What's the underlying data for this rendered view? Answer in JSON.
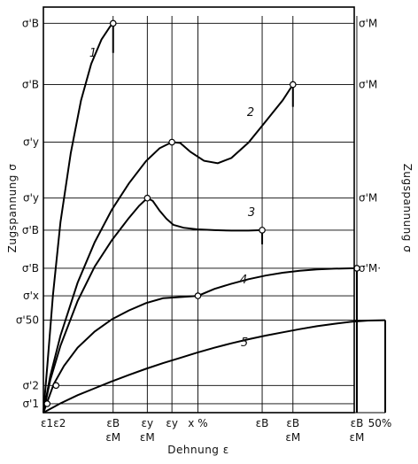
{
  "chart_data": {
    "type": "line",
    "title": "",
    "xlabel": "Dehnung ε",
    "ylabel_left": "Zugspannung σ",
    "ylabel_right": "Zugspannung σ",
    "xlim": [
      0,
      1000
    ],
    "ylim": [
      0,
      1000
    ],
    "grid": "custom reference lines",
    "y_ticks_left": [
      {
        "label": "σ'B",
        "value": 960
      },
      {
        "label": "σ'B",
        "value": 809
      },
      {
        "label": "σ'y",
        "value": 667
      },
      {
        "label": "σ'y",
        "value": 529
      },
      {
        "label": "σ'B",
        "value": 450
      },
      {
        "label": "σ'B",
        "value": 356
      },
      {
        "label": "σ'x",
        "value": 288
      },
      {
        "label": "σ'50",
        "value": 228
      },
      {
        "label": "σ'2",
        "value": 67
      },
      {
        "label": "σ'1",
        "value": 22
      }
    ],
    "y_ticks_right": [
      {
        "label": "σ'M",
        "value": 960
      },
      {
        "label": "σ'M",
        "value": 809
      },
      {
        "label": "σ'M",
        "value": 529
      },
      {
        "label": "σ'M·",
        "value": 356
      }
    ],
    "x_ticks": [
      {
        "label": "ε1",
        "value": 0
      },
      {
        "label": "ε2",
        "value": 37
      },
      {
        "label": "εB εM",
        "value": 204
      },
      {
        "label": "εy εM",
        "value": 304
      },
      {
        "label": "εy",
        "value": 376
      },
      {
        "label": "x %",
        "value": 452
      },
      {
        "label": "εB",
        "value": 640
      },
      {
        "label": "εB εM",
        "value": 730
      },
      {
        "label": "εB εM",
        "value": 917
      },
      {
        "label": "50%",
        "value": 1000
      }
    ],
    "series": [
      {
        "name": "1",
        "x": [
          0,
          12,
          28,
          50,
          80,
          110,
          140,
          170,
          195,
          204
        ],
        "y": [
          0,
          120,
          290,
          470,
          640,
          770,
          860,
          920,
          952,
          960
        ],
        "end": {
          "x": 204,
          "y": 960
        },
        "fracture_to": 887
      },
      {
        "name": "2",
        "x": [
          0,
          20,
          50,
          100,
          150,
          200,
          250,
          300,
          340,
          376,
          400,
          430,
          470,
          510,
          550,
          600,
          650,
          700,
          730
        ],
        "y": [
          0,
          90,
          190,
          320,
          420,
          500,
          565,
          620,
          652,
          667,
          665,
          643,
          621,
          615,
          628,
          666,
          718,
          770,
          809
        ],
        "end": {
          "x": 730,
          "y": 809
        },
        "fracture_to": 754
      },
      {
        "name": "3",
        "x": [
          0,
          20,
          50,
          100,
          150,
          200,
          250,
          280,
          304,
          320,
          340,
          360,
          380,
          410,
          450,
          500,
          550,
          600,
          640
        ],
        "y": [
          0,
          80,
          165,
          275,
          360,
          425,
          480,
          510,
          529,
          522,
          498,
          478,
          463,
          456,
          452,
          450,
          449,
          449,
          450
        ],
        "end": {
          "x": 640,
          "y": 450
        },
        "fracture_to": 415
      },
      {
        "name": "4",
        "x": [
          0,
          30,
          60,
          100,
          150,
          200,
          250,
          300,
          350,
          400,
          452,
          500,
          550,
          600,
          650,
          700,
          750,
          800,
          850,
          900,
          917
        ],
        "y": [
          0,
          70,
          115,
          160,
          200,
          230,
          252,
          270,
          282,
          285,
          288,
          305,
          318,
          329,
          338,
          345,
          350,
          353,
          355,
          356,
          356
        ],
        "end": {
          "x": 917,
          "y": 356
        },
        "fracture_to": 0
      },
      {
        "name": "5",
        "x": [
          0,
          50,
          100,
          150,
          200,
          250,
          300,
          350,
          400,
          450,
          500,
          550,
          600,
          650,
          700,
          750,
          800,
          850,
          900,
          950,
          1000
        ],
        "y": [
          0,
          23,
          43,
          60,
          77,
          93,
          108,
          122,
          135,
          148,
          160,
          171,
          181,
          190,
          198,
          206,
          213,
          219,
          224,
          227,
          228
        ],
        "end": {
          "x": 1000,
          "y": 228
        },
        "fracture_to": 0
      }
    ],
    "markers": [
      {
        "x": 204,
        "y": 960
      },
      {
        "x": 730,
        "y": 809
      },
      {
        "x": 376,
        "y": 667
      },
      {
        "x": 304,
        "y": 529
      },
      {
        "x": 640,
        "y": 450
      },
      {
        "x": 917,
        "y": 356
      },
      {
        "x": 452,
        "y": 288
      },
      {
        "x": 37,
        "y": 67
      },
      {
        "x": 11,
        "y": 22
      }
    ],
    "reference_lines": {
      "horizontal": [
        960,
        809,
        667,
        529,
        450,
        356,
        288,
        228,
        67,
        22
      ],
      "vertical": [
        204,
        304,
        376,
        452,
        640,
        730,
        917
      ]
    }
  }
}
